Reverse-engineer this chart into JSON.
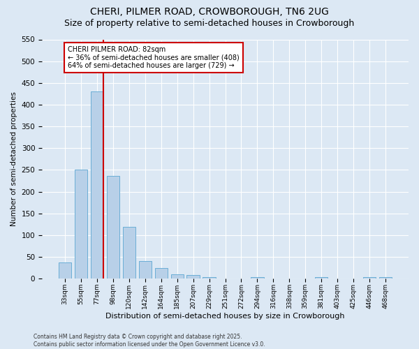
{
  "title": "CHERI, PILMER ROAD, CROWBOROUGH, TN6 2UG",
  "subtitle": "Size of property relative to semi-detached houses in Crowborough",
  "xlabel": "Distribution of semi-detached houses by size in Crowborough",
  "ylabel": "Number of semi-detached properties",
  "footer_line1": "Contains HM Land Registry data © Crown copyright and database right 2025.",
  "footer_line2": "Contains public sector information licensed under the Open Government Licence v3.0.",
  "bar_labels": [
    "33sqm",
    "55sqm",
    "77sqm",
    "98sqm",
    "120sqm",
    "142sqm",
    "164sqm",
    "185sqm",
    "207sqm",
    "229sqm",
    "251sqm",
    "272sqm",
    "294sqm",
    "316sqm",
    "338sqm",
    "359sqm",
    "381sqm",
    "403sqm",
    "425sqm",
    "446sqm",
    "468sqm"
  ],
  "bar_values": [
    38,
    250,
    430,
    237,
    119,
    40,
    25,
    10,
    9,
    4,
    0,
    0,
    3,
    0,
    0,
    0,
    4,
    0,
    0,
    3,
    3
  ],
  "bar_color": "#b8d0e8",
  "bar_edge_color": "#6baed6",
  "property_label": "CHERI PILMER ROAD: 82sqm",
  "pct_smaller": 36,
  "pct_larger": 64,
  "count_smaller": 408,
  "count_larger": 729,
  "vline_color": "#cc0000",
  "annotation_box_color": "#cc0000",
  "ylim": [
    0,
    550
  ],
  "yticks": [
    0,
    50,
    100,
    150,
    200,
    250,
    300,
    350,
    400,
    450,
    500,
    550
  ],
  "bg_color": "#dce8f4",
  "plot_bg_color": "#dce8f4",
  "grid_color": "#ffffff",
  "title_fontsize": 10,
  "subtitle_fontsize": 9
}
